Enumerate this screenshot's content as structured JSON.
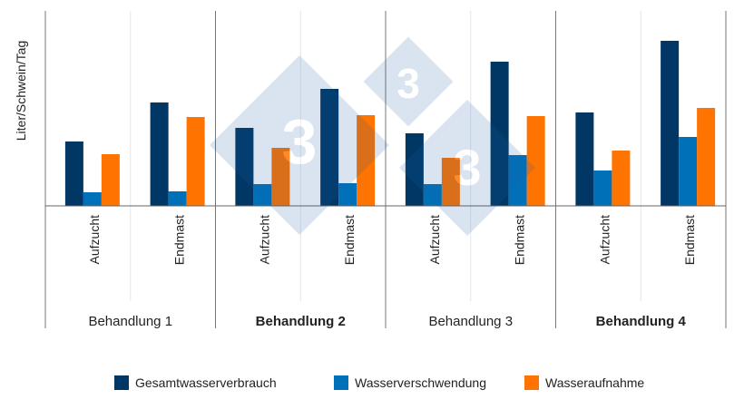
{
  "chart_data": {
    "type": "bar",
    "ylabel": "Liter/Schwein/Tag",
    "xlabel": "",
    "ylim": [
      0,
      215
    ],
    "y_ticks_shown": false,
    "grid": false,
    "legend_position": "bottom",
    "groups": [
      {
        "label": "Behandlung 1",
        "bold": false
      },
      {
        "label": "Behandlung 2",
        "bold": true
      },
      {
        "label": "Behandlung 3",
        "bold": false
      },
      {
        "label": "Behandlung 4",
        "bold": true
      }
    ],
    "categories": [
      "Aufzucht",
      "Endmast",
      "Aufzucht",
      "Endmast",
      "Aufzucht",
      "Endmast",
      "Aufzucht",
      "Endmast"
    ],
    "series": [
      {
        "name": "Gesamtwasserverbrauch",
        "color": "#003764",
        "values": [
          71,
          114,
          86,
          129,
          80,
          159,
          103,
          182
        ]
      },
      {
        "name": "Wasserverschwendung",
        "color": "#0070b8",
        "values": [
          15,
          16,
          24,
          25,
          24,
          56,
          39,
          76
        ]
      },
      {
        "name": "Wasseraufnahme",
        "color": "#ff7300",
        "values": [
          57,
          98,
          64,
          100,
          53,
          99,
          61,
          108
        ]
      }
    ]
  }
}
